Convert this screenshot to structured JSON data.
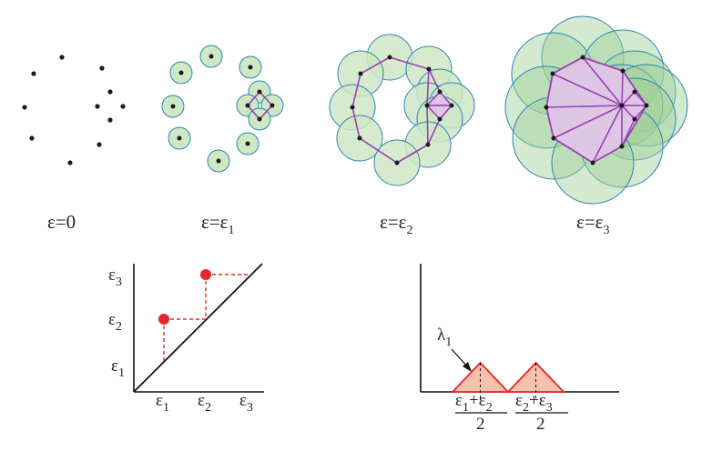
{
  "stages": [
    {
      "eps": "ε",
      "eq": "=",
      "val": "0",
      "sub": ""
    },
    {
      "eps": "ε",
      "eq": "=ε",
      "val": "",
      "sub": "1"
    },
    {
      "eps": "ε",
      "eq": "=ε",
      "val": "",
      "sub": "2"
    },
    {
      "eps": "ε",
      "eq": "=ε",
      "val": "",
      "sub": "3"
    }
  ],
  "persistence_diagram": {
    "y_ticks": [
      {
        "sym": "ε",
        "sub": "3"
      },
      {
        "sym": "ε",
        "sub": "2"
      },
      {
        "sym": "ε",
        "sub": "1"
      }
    ],
    "x_ticks": [
      {
        "sym": "ε",
        "sub": "1"
      },
      {
        "sym": "ε",
        "sub": "2"
      },
      {
        "sym": "ε",
        "sub": "3"
      }
    ],
    "points": [
      {
        "birth": 1,
        "death": 2
      },
      {
        "birth": 2,
        "death": 3
      }
    ],
    "point_color": "#e8262b"
  },
  "landscape": {
    "label": {
      "sym": "λ",
      "sub": "1"
    },
    "ticks": [
      {
        "num": [
          "ε",
          "1",
          "+ε",
          "2"
        ],
        "den": "2"
      },
      {
        "num": [
          "ε",
          "2",
          "+ε",
          "3"
        ],
        "den": "2"
      }
    ],
    "fill": "#f8c1ae",
    "stroke": "#e8262b"
  },
  "colors": {
    "disk_fill": "#cfe8c4",
    "disk_stroke": "#2a83b8",
    "simplex": "#9b3fb6",
    "simplex_fill": "#dcc6e4",
    "point": "#1a1a1a"
  }
}
